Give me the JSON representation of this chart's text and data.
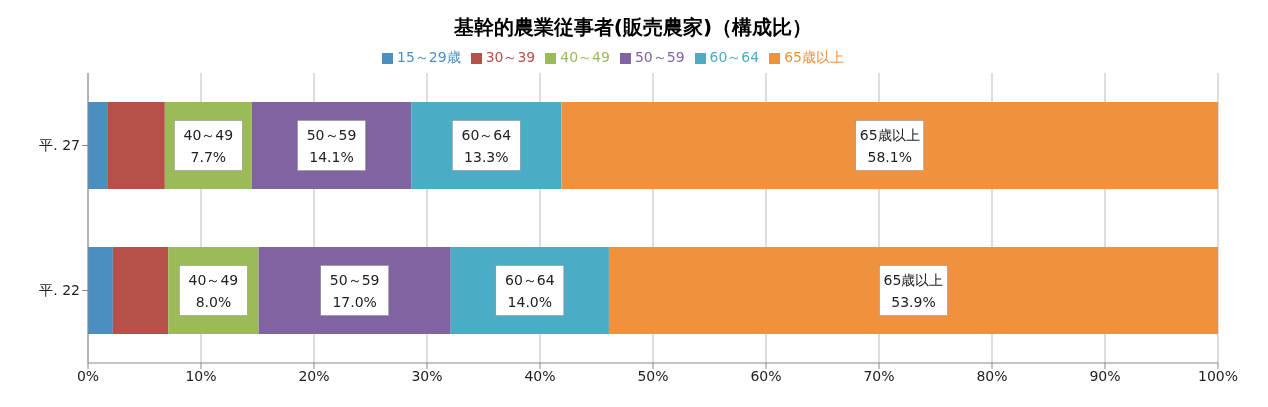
{
  "chart_data": {
    "type": "bar",
    "orientation": "horizontal",
    "stacked": true,
    "title": "基幹的農業従事者(販売農家)（構成比）",
    "categories": [
      "平. 27",
      "平. 22"
    ],
    "series": [
      {
        "name": "15～29歳",
        "color": "#4a8fc0",
        "values": [
          1.7,
          2.2
        ]
      },
      {
        "name": "30～39",
        "color": "#b5504a",
        "values": [
          5.1,
          4.9
        ]
      },
      {
        "name": "40～49",
        "color": "#9bbb59",
        "values": [
          7.7,
          8.0
        ],
        "value_labels": [
          "7.7%",
          "8.0%"
        ]
      },
      {
        "name": "50～59",
        "color": "#8064a2",
        "values": [
          14.1,
          17.0
        ],
        "value_labels": [
          "14.1%",
          "17.0%"
        ]
      },
      {
        "name": "60～64",
        "color": "#4bacc6",
        "values": [
          13.3,
          14.0
        ],
        "value_labels": [
          "13.3%",
          "14.0%"
        ]
      },
      {
        "name": "65歳以上",
        "color": "#f0913e",
        "values": [
          58.1,
          53.9
        ],
        "value_labels": [
          "58.1%",
          "53.9%"
        ]
      }
    ],
    "xlim": [
      0,
      100
    ],
    "xticks": [
      {
        "value": 0,
        "label": "0%"
      },
      {
        "value": 10,
        "label": "10%"
      },
      {
        "value": 20,
        "label": "20%"
      },
      {
        "value": 30,
        "label": "30%"
      },
      {
        "value": 40,
        "label": "40%"
      },
      {
        "value": 50,
        "label": "50%"
      },
      {
        "value": 60,
        "label": "60%"
      },
      {
        "value": 70,
        "label": "70%"
      },
      {
        "value": 80,
        "label": "80%"
      },
      {
        "value": 90,
        "label": "90%"
      },
      {
        "value": 100,
        "label": "100%"
      }
    ],
    "grid": "x",
    "legend": "top"
  }
}
